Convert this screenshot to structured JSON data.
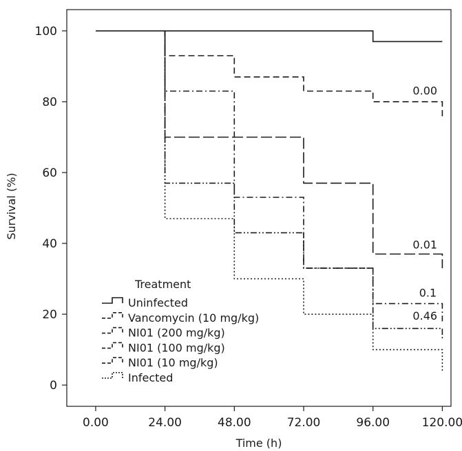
{
  "chart_data": {
    "type": "line",
    "step": true,
    "title": "",
    "xlabel": "Time (h)",
    "ylabel": "Survival (%)",
    "xlim": [
      -10,
      123
    ],
    "ylim": [
      -6,
      106
    ],
    "x_ticks": [
      "0.00",
      "24.00",
      "48.00",
      "72.00",
      "96.00",
      "120.00"
    ],
    "x_tick_values": [
      0,
      24,
      48,
      72,
      96,
      120
    ],
    "y_ticks": [
      "0",
      "20",
      "40",
      "60",
      "80",
      "100"
    ],
    "y_tick_values": [
      0,
      20,
      40,
      60,
      80,
      100
    ],
    "grid": false,
    "legend": {
      "title": "Treatment",
      "placement": "bottom-left"
    },
    "series": [
      {
        "name": "Uninfected",
        "dash": "solid",
        "x": [
          0,
          96,
          96,
          120
        ],
        "y": [
          100,
          100,
          97,
          97
        ]
      },
      {
        "name": "Vancomycin (10 mg/kg)",
        "dash": "dashed",
        "x": [
          24,
          24,
          48,
          48,
          72,
          72,
          96,
          96,
          120,
          120
        ],
        "y": [
          100,
          93,
          93,
          87,
          87,
          83,
          83,
          80,
          80,
          75
        ]
      },
      {
        "name": "NI01 (200 mg/kg)",
        "dash": "dash-dot",
        "x": [
          24,
          24,
          48,
          48,
          72,
          72,
          96,
          96,
          120,
          120
        ],
        "y": [
          100,
          83,
          83,
          53,
          53,
          33,
          33,
          23,
          23,
          18
        ]
      },
      {
        "name": "NI01 (100 mg/kg)",
        "dash": "long-dash",
        "x": [
          24,
          24,
          48,
          48,
          72,
          72,
          96,
          96,
          120,
          120
        ],
        "y": [
          100,
          70,
          70,
          70,
          70,
          57,
          57,
          37,
          37,
          33
        ]
      },
      {
        "name": "NI01 (10 mg/kg)",
        "dash": "dash-dot-dot",
        "x": [
          24,
          24,
          48,
          48,
          72,
          72,
          96,
          96,
          120,
          120
        ],
        "y": [
          100,
          57,
          57,
          43,
          43,
          33,
          33,
          16,
          16,
          13
        ]
      },
      {
        "name": "Infected",
        "dash": "dotted",
        "x": [
          24,
          24,
          48,
          48,
          72,
          72,
          96,
          96,
          120,
          120
        ],
        "y": [
          100,
          47,
          47,
          30,
          30,
          20,
          20,
          10,
          10,
          4
        ]
      }
    ],
    "annotations": [
      {
        "text": "0.00",
        "x": 114,
        "y": 82
      },
      {
        "text": "0.01",
        "x": 114,
        "y": 38.5
      },
      {
        "text": "0.1",
        "x": 115,
        "y": 25
      },
      {
        "text": "0.46",
        "x": 114,
        "y": 18.5
      }
    ]
  }
}
